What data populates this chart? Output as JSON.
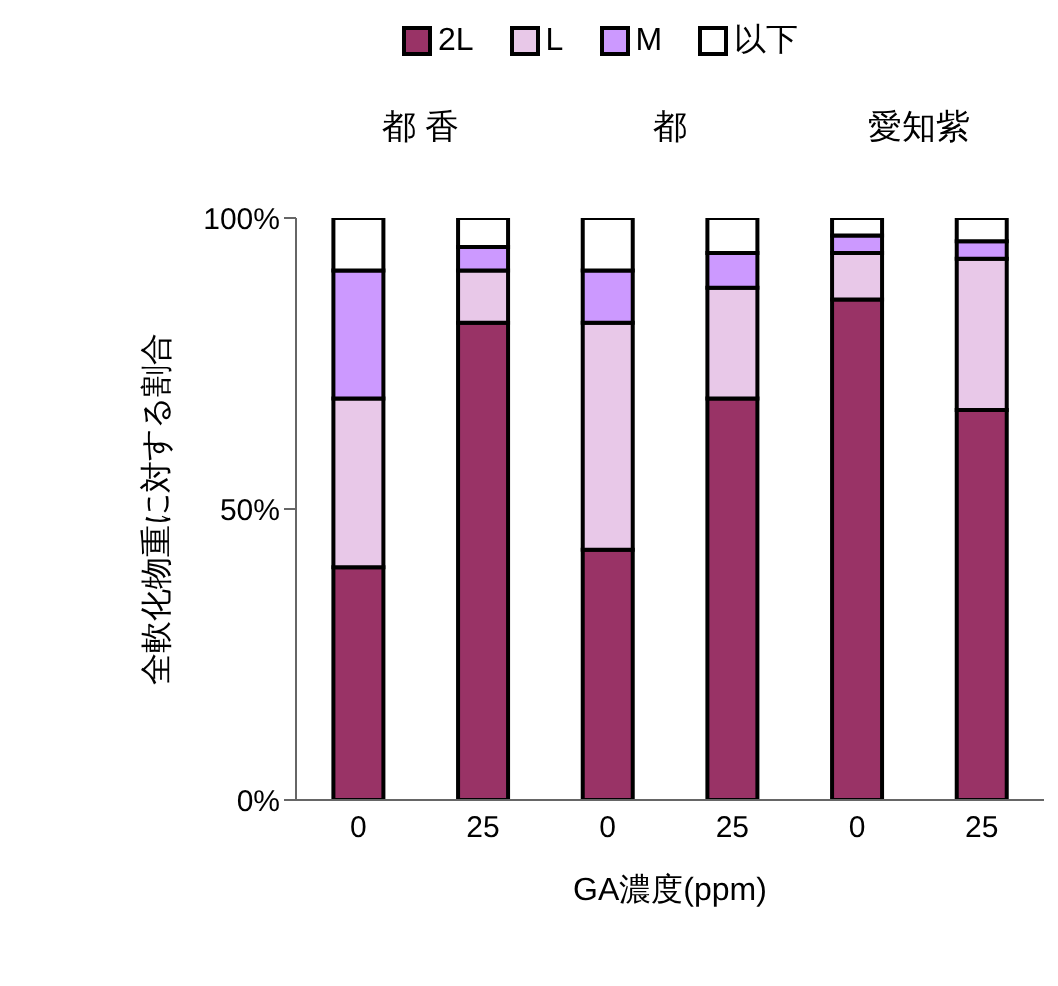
{
  "chart_data": {
    "type": "bar",
    "stacked": true,
    "xlabel": "GA濃度(ppm)",
    "ylabel": "全軟化物重に対する割合",
    "categories": [
      "0",
      "25",
      "0",
      "25",
      "0",
      "25"
    ],
    "series": [
      {
        "name": "2L",
        "color": "#993366",
        "values": [
          40,
          82,
          43,
          69,
          86,
          67
        ]
      },
      {
        "name": "L",
        "color": "#e8c8e8",
        "values": [
          29,
          9,
          39,
          19,
          8,
          26
        ]
      },
      {
        "name": "M",
        "color": "#cc99ff",
        "values": [
          22,
          4,
          9,
          6,
          3,
          3
        ]
      },
      {
        "name": "以下",
        "color": "#ffffff",
        "values": [
          9,
          5,
          9,
          6,
          3,
          4
        ]
      }
    ],
    "ylim": [
      0,
      100
    ],
    "yticks": [
      {
        "value": 0,
        "label": "0%"
      },
      {
        "value": 50,
        "label": "50%"
      },
      {
        "value": 100,
        "label": "100%"
      }
    ],
    "annotations": [
      "都 香",
      "都",
      "愛知紫"
    ],
    "grid": false,
    "legend": "top"
  }
}
